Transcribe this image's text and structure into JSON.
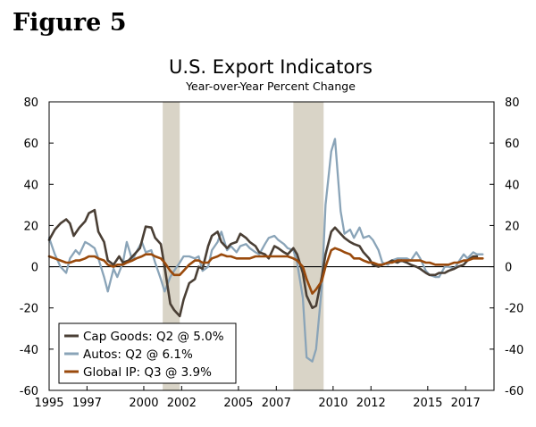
{
  "figure_label": "Figure 5",
  "chart_data": {
    "type": "line",
    "title": "U.S. Export Indicators",
    "subtitle": "Year-over-Year Percent Change",
    "xlabel": "",
    "ylabel": "",
    "xlim": [
      1995,
      2018.5
    ],
    "ylim": [
      -60,
      80
    ],
    "y_ticks": [
      80,
      60,
      40,
      20,
      0,
      -20,
      -40,
      -60
    ],
    "y_tick_labels": [
      "80",
      "60",
      "40",
      "20",
      "0",
      "-20",
      "-40",
      "-60"
    ],
    "x_ticks": [
      1995,
      1997,
      2000,
      2002,
      2005,
      2007,
      2010,
      2012,
      2015,
      2017
    ],
    "x_tick_labels": [
      "1995",
      "1997",
      "2000",
      "2002",
      "2005",
      "2007",
      "2010",
      "2012",
      "2015",
      "2017"
    ],
    "recessions": [
      [
        2001.0,
        2001.9
      ],
      [
        2007.9,
        2009.5
      ]
    ],
    "legend_position": "bottom-left",
    "colors": {
      "cap_goods": "#4a3f35",
      "autos": "#8aa4b8",
      "global_ip": "#9a4a0c",
      "recession": "#d9d4c7",
      "zero_line": "#000000"
    },
    "series": [
      {
        "name": "Cap Goods",
        "legend": "Cap Goods: Q2 @ 5.0%",
        "color": "#4a3f35",
        "points": [
          [
            1995.0,
            13
          ],
          [
            1995.3,
            18
          ],
          [
            1995.6,
            21
          ],
          [
            1995.9,
            23
          ],
          [
            1996.1,
            21
          ],
          [
            1996.3,
            15
          ],
          [
            1996.6,
            19
          ],
          [
            1996.9,
            22
          ],
          [
            1997.1,
            26
          ],
          [
            1997.4,
            27.5
          ],
          [
            1997.6,
            17
          ],
          [
            1997.9,
            12
          ],
          [
            1998.1,
            3
          ],
          [
            1998.4,
            1
          ],
          [
            1998.7,
            5
          ],
          [
            1998.9,
            2
          ],
          [
            1999.2,
            3
          ],
          [
            1999.5,
            6
          ],
          [
            1999.8,
            9
          ],
          [
            2000.1,
            19.5
          ],
          [
            2000.4,
            19
          ],
          [
            2000.6,
            14
          ],
          [
            2000.9,
            11
          ],
          [
            2001.1,
            0
          ],
          [
            2001.4,
            -18
          ],
          [
            2001.6,
            -21
          ],
          [
            2001.9,
            -24
          ],
          [
            2002.1,
            -16
          ],
          [
            2002.4,
            -8
          ],
          [
            2002.7,
            -6
          ],
          [
            2002.9,
            0
          ],
          [
            2003.1,
            -1
          ],
          [
            2003.4,
            10
          ],
          [
            2003.6,
            15
          ],
          [
            2003.9,
            17
          ],
          [
            2004.1,
            12
          ],
          [
            2004.4,
            9
          ],
          [
            2004.6,
            11
          ],
          [
            2004.9,
            12
          ],
          [
            2005.1,
            16
          ],
          [
            2005.4,
            14
          ],
          [
            2005.6,
            12
          ],
          [
            2005.9,
            10
          ],
          [
            2006.1,
            7
          ],
          [
            2006.4,
            6
          ],
          [
            2006.6,
            4
          ],
          [
            2006.9,
            10
          ],
          [
            2007.1,
            9
          ],
          [
            2007.4,
            7
          ],
          [
            2007.6,
            6
          ],
          [
            2007.9,
            9
          ],
          [
            2008.1,
            6
          ],
          [
            2008.4,
            -3
          ],
          [
            2008.6,
            -14
          ],
          [
            2008.9,
            -20
          ],
          [
            2009.1,
            -19
          ],
          [
            2009.4,
            -5
          ],
          [
            2009.6,
            6
          ],
          [
            2009.9,
            17
          ],
          [
            2010.1,
            19
          ],
          [
            2010.4,
            16
          ],
          [
            2010.6,
            14
          ],
          [
            2010.9,
            12
          ],
          [
            2011.1,
            11
          ],
          [
            2011.4,
            10
          ],
          [
            2011.6,
            7
          ],
          [
            2011.9,
            4
          ],
          [
            2012.1,
            1
          ],
          [
            2012.4,
            0
          ],
          [
            2012.6,
            1
          ],
          [
            2012.9,
            2
          ],
          [
            2013.1,
            3
          ],
          [
            2013.4,
            2
          ],
          [
            2013.6,
            3
          ],
          [
            2013.9,
            2
          ],
          [
            2014.1,
            1
          ],
          [
            2014.4,
            0
          ],
          [
            2014.6,
            -1
          ],
          [
            2014.9,
            -3
          ],
          [
            2015.1,
            -4
          ],
          [
            2015.4,
            -4
          ],
          [
            2015.6,
            -3
          ],
          [
            2015.9,
            -3
          ],
          [
            2016.1,
            -2
          ],
          [
            2016.4,
            -1
          ],
          [
            2016.6,
            0
          ],
          [
            2016.9,
            1
          ],
          [
            2017.1,
            3
          ],
          [
            2017.4,
            5
          ],
          [
            2017.6,
            5
          ]
        ]
      },
      {
        "name": "Autos",
        "legend": "Autos: Q2 @ 6.1%",
        "color": "#8aa4b8",
        "points": [
          [
            1995.0,
            14
          ],
          [
            1995.3,
            6
          ],
          [
            1995.6,
            0
          ],
          [
            1995.9,
            -3
          ],
          [
            1996.1,
            4
          ],
          [
            1996.4,
            8
          ],
          [
            1996.6,
            6
          ],
          [
            1996.9,
            12
          ],
          [
            1997.1,
            11
          ],
          [
            1997.4,
            9
          ],
          [
            1997.6,
            4
          ],
          [
            1997.9,
            -5
          ],
          [
            1998.1,
            -12
          ],
          [
            1998.4,
            -1
          ],
          [
            1998.6,
            -5
          ],
          [
            1998.9,
            2
          ],
          [
            1999.1,
            12
          ],
          [
            1999.4,
            3
          ],
          [
            1999.6,
            7
          ],
          [
            1999.9,
            12
          ],
          [
            2000.1,
            7
          ],
          [
            2000.4,
            8
          ],
          [
            2000.6,
            2
          ],
          [
            2000.9,
            -6
          ],
          [
            2001.1,
            -12
          ],
          [
            2001.4,
            -5
          ],
          [
            2001.6,
            -2
          ],
          [
            2001.9,
            2
          ],
          [
            2002.1,
            5
          ],
          [
            2002.4,
            5
          ],
          [
            2002.7,
            4
          ],
          [
            2002.9,
            5
          ],
          [
            2003.1,
            -2
          ],
          [
            2003.4,
            0
          ],
          [
            2003.6,
            8
          ],
          [
            2003.9,
            12
          ],
          [
            2004.1,
            17
          ],
          [
            2004.4,
            8
          ],
          [
            2004.6,
            10
          ],
          [
            2004.9,
            7
          ],
          [
            2005.1,
            10
          ],
          [
            2005.4,
            11
          ],
          [
            2005.6,
            9
          ],
          [
            2005.9,
            7
          ],
          [
            2006.1,
            6
          ],
          [
            2006.4,
            11
          ],
          [
            2006.6,
            14
          ],
          [
            2006.9,
            15
          ],
          [
            2007.1,
            13
          ],
          [
            2007.4,
            11
          ],
          [
            2007.6,
            9
          ],
          [
            2007.9,
            8
          ],
          [
            2008.1,
            2
          ],
          [
            2008.4,
            -15
          ],
          [
            2008.6,
            -44
          ],
          [
            2008.9,
            -46
          ],
          [
            2009.1,
            -40
          ],
          [
            2009.4,
            -10
          ],
          [
            2009.6,
            30
          ],
          [
            2009.9,
            56
          ],
          [
            2010.1,
            62
          ],
          [
            2010.4,
            27
          ],
          [
            2010.6,
            16
          ],
          [
            2010.9,
            18
          ],
          [
            2011.1,
            14
          ],
          [
            2011.4,
            19
          ],
          [
            2011.6,
            14
          ],
          [
            2011.9,
            15
          ],
          [
            2012.1,
            13
          ],
          [
            2012.4,
            8
          ],
          [
            2012.6,
            2
          ],
          [
            2012.9,
            1
          ],
          [
            2013.1,
            3
          ],
          [
            2013.4,
            4
          ],
          [
            2013.6,
            4
          ],
          [
            2013.9,
            4
          ],
          [
            2014.1,
            3
          ],
          [
            2014.4,
            7
          ],
          [
            2014.6,
            4
          ],
          [
            2014.9,
            -2
          ],
          [
            2015.1,
            -4
          ],
          [
            2015.4,
            -5
          ],
          [
            2015.6,
            -5
          ],
          [
            2015.9,
            0
          ],
          [
            2016.1,
            0
          ],
          [
            2016.4,
            -1
          ],
          [
            2016.6,
            2
          ],
          [
            2016.9,
            6
          ],
          [
            2017.1,
            4
          ],
          [
            2017.4,
            7
          ],
          [
            2017.6,
            6
          ],
          [
            2017.9,
            6
          ]
        ]
      },
      {
        "name": "Global IP",
        "legend": "Global IP: Q3 @ 3.9%",
        "color": "#9a4a0c",
        "points": [
          [
            1995.0,
            5
          ],
          [
            1995.3,
            4
          ],
          [
            1995.6,
            3
          ],
          [
            1995.9,
            2
          ],
          [
            1996.1,
            2
          ],
          [
            1996.4,
            3
          ],
          [
            1996.6,
            3
          ],
          [
            1996.9,
            4
          ],
          [
            1997.1,
            5
          ],
          [
            1997.4,
            5
          ],
          [
            1997.6,
            4
          ],
          [
            1997.9,
            3
          ],
          [
            1998.1,
            1
          ],
          [
            1998.4,
            0
          ],
          [
            1998.6,
            1
          ],
          [
            1998.9,
            1
          ],
          [
            1999.1,
            2
          ],
          [
            1999.4,
            3
          ],
          [
            1999.6,
            4
          ],
          [
            1999.9,
            5
          ],
          [
            2000.1,
            6
          ],
          [
            2000.4,
            6
          ],
          [
            2000.6,
            5
          ],
          [
            2000.9,
            4
          ],
          [
            2001.1,
            2
          ],
          [
            2001.4,
            -2
          ],
          [
            2001.6,
            -4
          ],
          [
            2001.9,
            -4
          ],
          [
            2002.1,
            -2
          ],
          [
            2002.4,
            1
          ],
          [
            2002.7,
            3
          ],
          [
            2002.9,
            3
          ],
          [
            2003.1,
            2
          ],
          [
            2003.4,
            2
          ],
          [
            2003.6,
            4
          ],
          [
            2003.9,
            5
          ],
          [
            2004.1,
            6
          ],
          [
            2004.4,
            5
          ],
          [
            2004.6,
            5
          ],
          [
            2004.9,
            4
          ],
          [
            2005.1,
            4
          ],
          [
            2005.4,
            4
          ],
          [
            2005.6,
            4
          ],
          [
            2005.9,
            5
          ],
          [
            2006.1,
            5
          ],
          [
            2006.4,
            5
          ],
          [
            2006.6,
            5
          ],
          [
            2006.9,
            5
          ],
          [
            2007.1,
            5
          ],
          [
            2007.4,
            5
          ],
          [
            2007.6,
            5
          ],
          [
            2007.9,
            4
          ],
          [
            2008.1,
            3
          ],
          [
            2008.4,
            0
          ],
          [
            2008.6,
            -6
          ],
          [
            2008.9,
            -13
          ],
          [
            2009.1,
            -11
          ],
          [
            2009.4,
            -7
          ],
          [
            2009.6,
            0
          ],
          [
            2009.9,
            8
          ],
          [
            2010.1,
            9
          ],
          [
            2010.4,
            8
          ],
          [
            2010.6,
            7
          ],
          [
            2010.9,
            6
          ],
          [
            2011.1,
            4
          ],
          [
            2011.4,
            4
          ],
          [
            2011.6,
            3
          ],
          [
            2011.9,
            2
          ],
          [
            2012.1,
            2
          ],
          [
            2012.4,
            1
          ],
          [
            2012.6,
            1
          ],
          [
            2012.9,
            2
          ],
          [
            2013.1,
            2
          ],
          [
            2013.4,
            3
          ],
          [
            2013.6,
            3
          ],
          [
            2013.9,
            3
          ],
          [
            2014.1,
            3
          ],
          [
            2014.4,
            3
          ],
          [
            2014.6,
            3
          ],
          [
            2014.9,
            2
          ],
          [
            2015.1,
            2
          ],
          [
            2015.4,
            1
          ],
          [
            2015.6,
            1
          ],
          [
            2015.9,
            1
          ],
          [
            2016.1,
            1
          ],
          [
            2016.4,
            2
          ],
          [
            2016.6,
            2
          ],
          [
            2016.9,
            3
          ],
          [
            2017.1,
            3
          ],
          [
            2017.4,
            4
          ],
          [
            2017.6,
            4
          ],
          [
            2017.9,
            4
          ]
        ]
      }
    ]
  }
}
